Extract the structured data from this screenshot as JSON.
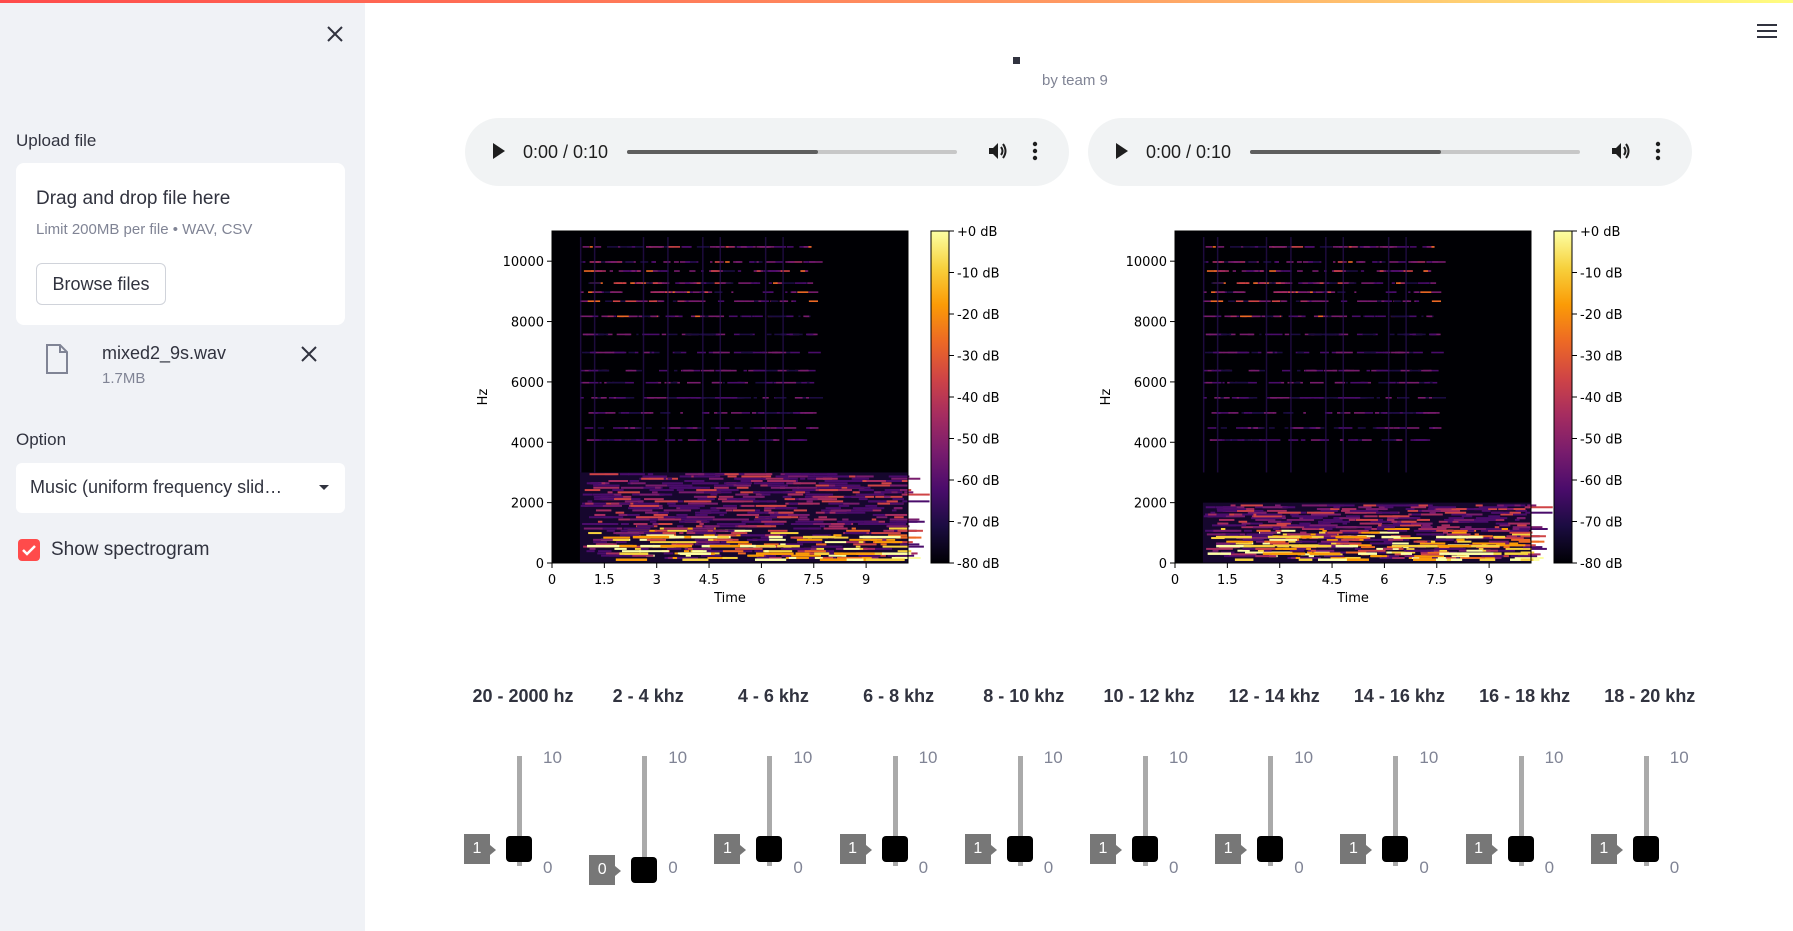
{
  "sidebar": {
    "upload_label": "Upload file",
    "dropzone_title": "Drag and drop file here",
    "dropzone_limit": "Limit 200MB per file • WAV, CSV",
    "browse_button": "Browse files",
    "file_name": "mixed2_9s.wav",
    "file_size": "1.7MB",
    "option_label": "Option",
    "option_value": "Music (uniform frequency slid…",
    "show_spectrogram_label": "Show spectrogram",
    "show_spectrogram_checked": true
  },
  "header": {
    "byline": "by team 9"
  },
  "players": [
    {
      "time": "0:00 / 0:10",
      "progress": 0.58
    },
    {
      "time": "0:00 / 0:10",
      "progress": 0.58
    }
  ],
  "spectrograms": [
    {
      "ylabel": "Hz",
      "xlabel": "Time",
      "yticks": [
        "10000",
        "8000",
        "6000",
        "4000",
        "2000",
        "0"
      ],
      "xticks": [
        "0",
        "1.5",
        "3",
        "4.5",
        "6",
        "7.5",
        "9"
      ],
      "colorbar": [
        "+0 dB",
        "-10 dB",
        "-20 dB",
        "-30 dB",
        "-40 dB",
        "-50 dB",
        "-60 dB",
        "-70 dB",
        "-80 dB"
      ],
      "lowband_top_hz": 3000
    },
    {
      "ylabel": "Hz",
      "xlabel": "Time",
      "yticks": [
        "10000",
        "8000",
        "6000",
        "4000",
        "2000",
        "0"
      ],
      "xticks": [
        "0",
        "1.5",
        "3",
        "4.5",
        "6",
        "7.5",
        "9"
      ],
      "colorbar": [
        "+0 dB",
        "-10 dB",
        "-20 dB",
        "-30 dB",
        "-40 dB",
        "-50 dB",
        "-60 dB",
        "-70 dB",
        "-80 dB"
      ],
      "lowband_top_hz": 2000
    }
  ],
  "sliders": [
    {
      "label": "20 - 2000 hz",
      "value": "1",
      "min": "0",
      "max": "10"
    },
    {
      "label": "2 - 4 khz",
      "value": "0",
      "min": "0",
      "max": "10"
    },
    {
      "label": "4 - 6 khz",
      "value": "1",
      "min": "0",
      "max": "10"
    },
    {
      "label": "6 - 8 khz",
      "value": "1",
      "min": "0",
      "max": "10"
    },
    {
      "label": "8 - 10 khz",
      "value": "1",
      "min": "0",
      "max": "10"
    },
    {
      "label": "10 - 12 khz",
      "value": "1",
      "min": "0",
      "max": "10"
    },
    {
      "label": "12 - 14 khz",
      "value": "1",
      "min": "0",
      "max": "10"
    },
    {
      "label": "14 - 16 khz",
      "value": "1",
      "min": "0",
      "max": "10"
    },
    {
      "label": "16 - 18 khz",
      "value": "1",
      "min": "0",
      "max": "10"
    },
    {
      "label": "18 - 20 khz",
      "value": "1",
      "min": "0",
      "max": "10"
    }
  ],
  "colors": {
    "accent": "#ff4b4b",
    "sidebar_bg": "#f0f2f6"
  }
}
